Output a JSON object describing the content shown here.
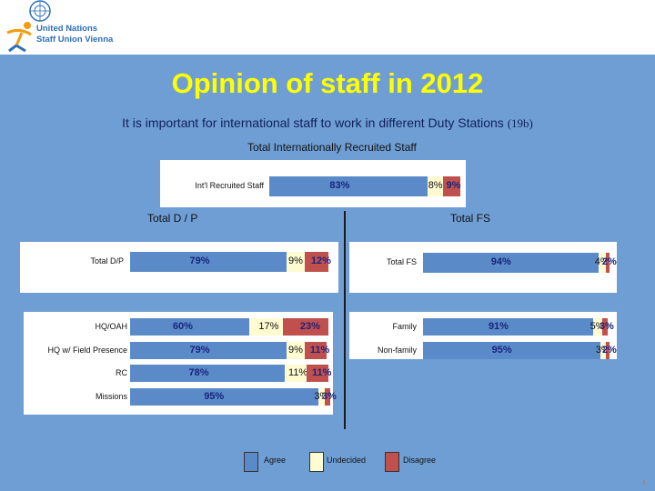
{
  "header": {
    "logo_line1": "United Nations",
    "logo_line2": "Staff Union Vienna",
    "colors": {
      "logo_blue": "#2e6fb5",
      "logo_orange": "#f39c12"
    }
  },
  "title": "Opinion of staff in 2012",
  "subtitle": "It is important for international staff to work in different Duty Stations",
  "subtitle_code": "(19b)",
  "page_number": "4",
  "colors": {
    "background": "#6f9ed4",
    "title": "#ffff00",
    "agree": "#5a8bc8",
    "undecided": "#fffbd0",
    "disagree": "#c0504d"
  },
  "chart_data": [
    {
      "type": "bar",
      "stacked": true,
      "orientation": "horizontal",
      "title": "Total Internationally Recruited Staff",
      "categories": [
        "Int'l Recruited Staff"
      ],
      "series": [
        {
          "name": "Agree",
          "values": [
            83
          ]
        },
        {
          "name": "Undecided",
          "values": [
            8
          ]
        },
        {
          "name": "Disagree",
          "values": [
            9
          ]
        }
      ],
      "labels": [
        [
          "83%",
          "8%",
          "9%"
        ]
      ]
    },
    {
      "type": "bar",
      "stacked": true,
      "orientation": "horizontal",
      "title": "Total D / P",
      "categories": [
        "Total D/P"
      ],
      "series": [
        {
          "name": "Agree",
          "values": [
            79
          ]
        },
        {
          "name": "Undecided",
          "values": [
            9
          ]
        },
        {
          "name": "Disagree",
          "values": [
            12
          ]
        }
      ],
      "labels": [
        [
          "79%",
          "9%",
          "12%"
        ]
      ]
    },
    {
      "type": "bar",
      "stacked": true,
      "orientation": "horizontal",
      "title": "",
      "categories": [
        "HQ/OAH",
        "HQ w/ Field Presence",
        "RC",
        "Missions"
      ],
      "series": [
        {
          "name": "Agree",
          "values": [
            60,
            79,
            78,
            95
          ]
        },
        {
          "name": "Undecided",
          "values": [
            17,
            9,
            11,
            3
          ]
        },
        {
          "name": "Disagree",
          "values": [
            23,
            11,
            11,
            3
          ]
        }
      ],
      "labels": [
        [
          "60%",
          "17%",
          "23%"
        ],
        [
          "79%",
          "9%",
          "11%"
        ],
        [
          "78%",
          "11%",
          "11%"
        ],
        [
          "95%",
          "3%",
          "3%"
        ]
      ]
    },
    {
      "type": "bar",
      "stacked": true,
      "orientation": "horizontal",
      "title": "Total FS",
      "categories": [
        "Total FS"
      ],
      "series": [
        {
          "name": "Agree",
          "values": [
            94
          ]
        },
        {
          "name": "Undecided",
          "values": [
            4
          ]
        },
        {
          "name": "Disagree",
          "values": [
            2
          ]
        }
      ],
      "labels": [
        [
          "94%",
          "4%",
          "2%"
        ]
      ]
    },
    {
      "type": "bar",
      "stacked": true,
      "orientation": "horizontal",
      "title": "",
      "categories": [
        "Family",
        "Non-family"
      ],
      "series": [
        {
          "name": "Agree",
          "values": [
            91,
            95
          ]
        },
        {
          "name": "Undecided",
          "values": [
            5,
            3
          ]
        },
        {
          "name": "Disagree",
          "values": [
            3,
            2
          ]
        }
      ],
      "labels": [
        [
          "91%",
          "5%",
          "3%"
        ],
        [
          "95%",
          "3%",
          "2%"
        ]
      ]
    }
  ],
  "legend": [
    {
      "label": "Agree",
      "color": "#5a8bc8"
    },
    {
      "label": "Undecided",
      "color": "#fffbd0"
    },
    {
      "label": "Disagree",
      "color": "#c0504d"
    }
  ]
}
